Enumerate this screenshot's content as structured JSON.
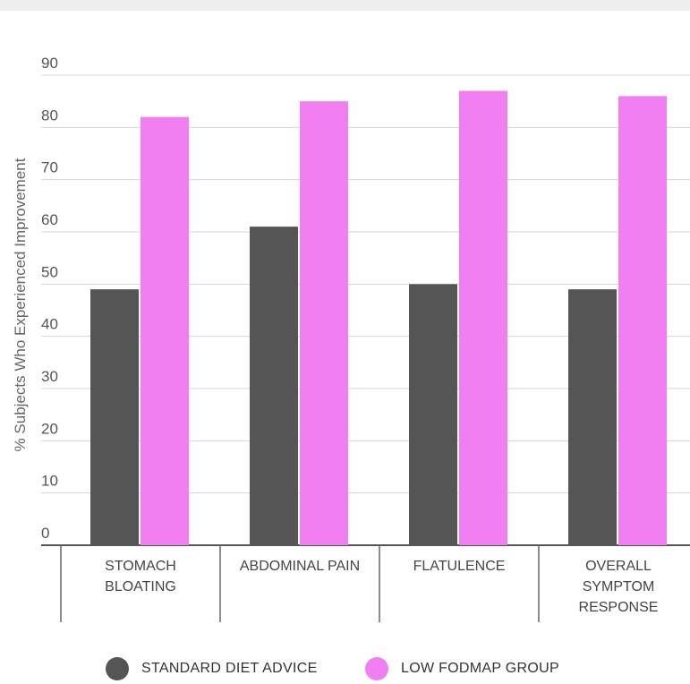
{
  "chart_data": {
    "type": "bar",
    "ylabel": "% Subjects Who Experienced Improvement",
    "xlabel": "",
    "ylim": [
      0,
      90
    ],
    "yticks": [
      0,
      10,
      20,
      30,
      40,
      50,
      60,
      70,
      80,
      90
    ],
    "grid": true,
    "legend_position": "bottom",
    "categories": [
      [
        "STOMACH",
        "BLOATING"
      ],
      [
        "ABDOMINAL PAIN"
      ],
      [
        "FLATULENCE"
      ],
      [
        "OVERALL",
        "SYMPTOM",
        "RESPONSE"
      ]
    ],
    "series": [
      {
        "name": "STANDARD DIET ADVICE",
        "color": "#555555",
        "values": [
          49,
          61,
          50,
          49
        ]
      },
      {
        "name": "LOW FODMAP GROUP",
        "color": "#f27ff2",
        "values": [
          82,
          85,
          87,
          86
        ]
      }
    ]
  }
}
